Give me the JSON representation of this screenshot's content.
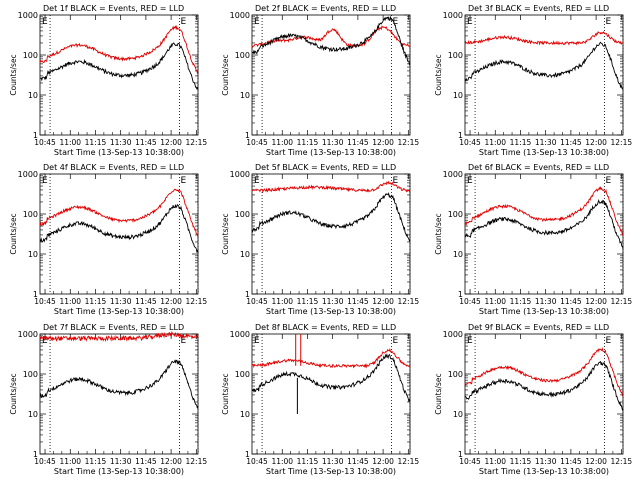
{
  "chart_data": [
    {
      "title": "Det 1f BLACK = Events, RED = LLD",
      "ylabel": "Counts/sec",
      "xlabel": "Start Time (13-Sep-13 10:38:00)"
    },
    {
      "title": "Det 2f BLACK = Events, RED = LLD",
      "ylabel": "Counts/sec",
      "xlabel": "Start Time (13-Sep-13 10:38:00)"
    },
    {
      "title": "Det 3f BLACK = Events, RED = LLD",
      "ylabel": "Counts/sec",
      "xlabel": "Start Time (13-Sep-13 10:38:00)"
    },
    {
      "title": "Det 4f BLACK = Events, RED = LLD",
      "ylabel": "Counts/sec",
      "xlabel": "Start Time (13-Sep-13 10:38:00)"
    },
    {
      "title": "Det 5f BLACK = Events, RED = LLD",
      "ylabel": "Counts/sec",
      "xlabel": "Start Time (13-Sep-13 10:38:00)"
    },
    {
      "title": "Det 6f BLACK = Events, RED = LLD",
      "ylabel": "Counts/sec",
      "xlabel": "Start Time (13-Sep-13 10:38:00)"
    },
    {
      "title": "Det 7f BLACK = Events, RED = LLD",
      "ylabel": "Counts/sec",
      "xlabel": "Start Time (13-Sep-13 10:38:00)"
    },
    {
      "title": "Det 8f BLACK = Events, RED = LLD",
      "ylabel": "Counts/sec",
      "xlabel": "Start Time (13-Sep-13 10:38:00)"
    },
    {
      "title": "Det 9f BLACK = Events, RED = LLD",
      "ylabel": "Counts/sec",
      "xlabel": "Start Time (13-Sep-13 10:38:00)"
    }
  ],
  "common": {
    "type": "line",
    "yscale": "log",
    "ylim": [
      1,
      1000
    ],
    "yticks": [
      1,
      10,
      100,
      1000
    ],
    "ytick_labels": [
      "1",
      "10",
      "100",
      "1000"
    ],
    "xlim_min": [
      4,
      98
    ],
    "xticks_min": [
      7,
      22,
      37,
      52,
      67,
      82,
      97
    ],
    "xtick_labels": [
      "10:45",
      "11:00",
      "11:15",
      "11:30",
      "11:45",
      "12:00",
      "12:15"
    ],
    "vlines_min": [
      10,
      87,
      98
    ],
    "vline_marks": [
      "",
      "E",
      ""
    ],
    "series_styles": [
      {
        "name": "BLACK",
        "color": "#000000"
      },
      {
        "name": "RED",
        "color": "#e00000"
      }
    ]
  }
}
